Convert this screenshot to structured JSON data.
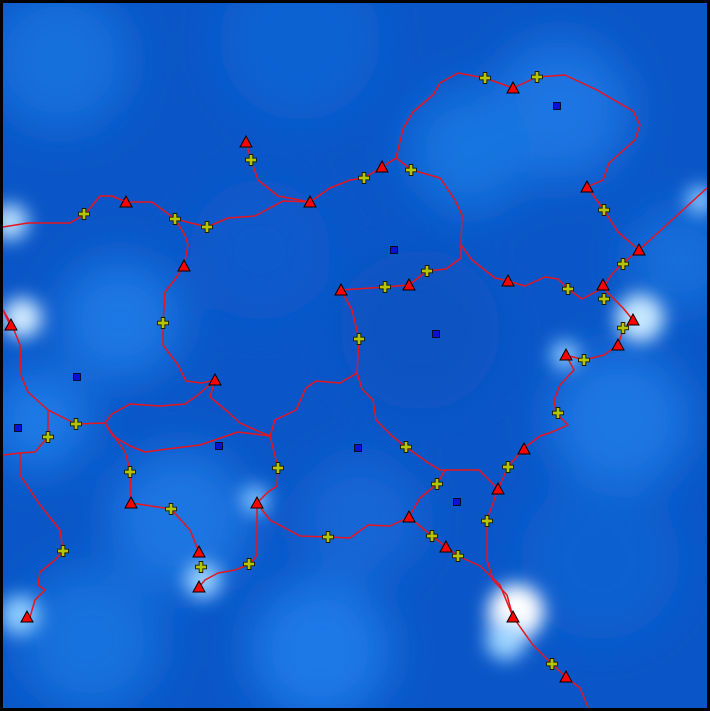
{
  "colors": {
    "terrain_low": "#0a56c8",
    "terrain_mid": "#1a7ae6",
    "terrain_high": "#ffffff",
    "boundary_line": "#e8141e",
    "triangle_fill": "#ff0000",
    "triangle_stroke": "#000000",
    "cross_fill": "#b7c400",
    "cross_stroke": "#1a1a00",
    "square_fill": "#0a10d6",
    "square_stroke": "#000000",
    "frame": "#000000"
  },
  "legend": {
    "triangle_icon": "triangle-marker-icon",
    "cross_icon": "plus-marker-icon",
    "square_icon": "square-marker-icon"
  }
}
